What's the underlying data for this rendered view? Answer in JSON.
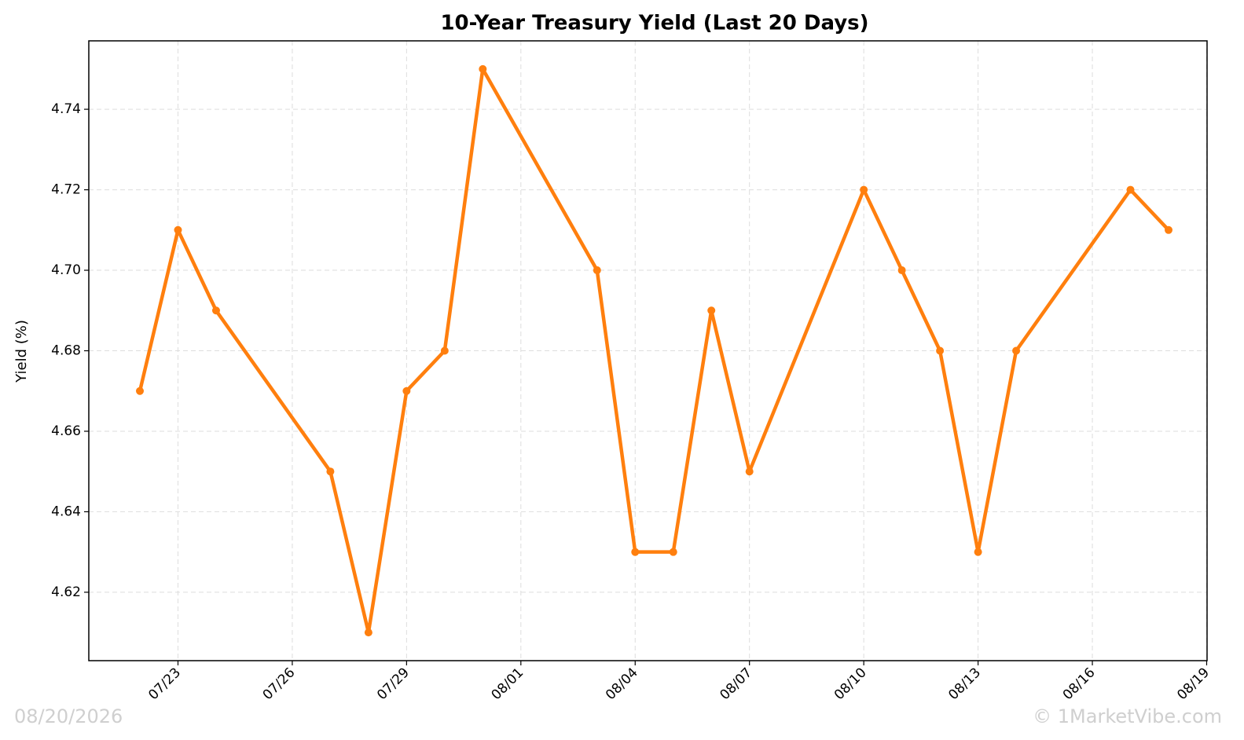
{
  "chart_data": {
    "type": "line",
    "title": "10-Year Treasury Yield (Last 20 Days)",
    "y_label": "Yield (%)",
    "x": [
      "07/22",
      "07/23",
      "07/24",
      "07/27",
      "07/28",
      "07/29",
      "07/30",
      "07/31",
      "08/03",
      "08/04",
      "08/05",
      "08/06",
      "08/07",
      "08/10",
      "08/11",
      "08/12",
      "08/13",
      "08/14",
      "08/17",
      "08/18"
    ],
    "series": [
      {
        "name": "10-Year Treasury Yield",
        "color": "#ff7f0e",
        "values": [
          4.67,
          4.71,
          4.69,
          4.65,
          4.61,
          4.67,
          4.68,
          4.75,
          4.7,
          4.63,
          4.63,
          4.69,
          4.65,
          4.72,
          4.7,
          4.68,
          4.63,
          4.68,
          4.72,
          4.71
        ]
      }
    ],
    "ylim": [
      4.603,
      4.757
    ],
    "yticks": [
      4.62,
      4.64,
      4.66,
      4.68,
      {
        "value": 4.7,
        "label": "4.70"
      },
      4.72,
      4.74
    ],
    "xticks": [
      "07/23",
      "07/26",
      "07/29",
      "08/01",
      "08/04",
      "08/07",
      "08/10",
      "08/13",
      "08/16",
      "08/19"
    ],
    "grid": true,
    "annotations": {
      "date_stamp": "08/20/2026",
      "watermark": "© 1MarketVibe.com"
    }
  }
}
